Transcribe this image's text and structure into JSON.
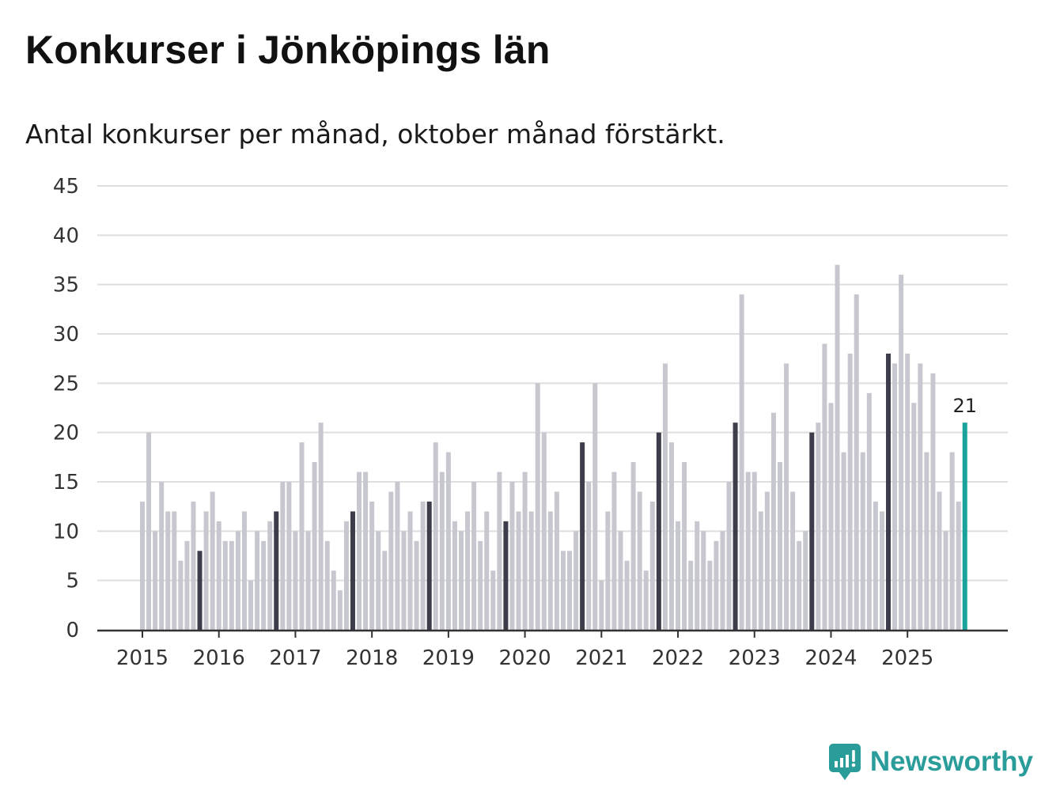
{
  "title": "Konkurser i Jönköpings län",
  "subtitle": "Antal konkurser per månad, oktober månad förstärkt.",
  "brand": {
    "name": "Newsworthy",
    "icon": "newsworthy-logo-icon"
  },
  "colors": {
    "normal": "#c7c7cf",
    "october": "#3c3c4b",
    "latest": "#1aa19c",
    "grid": "#dedede",
    "axis": "#333333"
  },
  "chart_data": {
    "type": "bar",
    "title": "Konkurser i Jönköpings län",
    "subtitle": "Antal konkurser per månad, oktober månad förstärkt.",
    "xlabel": "",
    "ylabel": "",
    "ylim": [
      0,
      45
    ],
    "yticks": [
      0,
      5,
      10,
      15,
      20,
      25,
      30,
      35,
      40,
      45
    ],
    "xticks": [
      "2015",
      "2016",
      "2017",
      "2018",
      "2019",
      "2020",
      "2021",
      "2022",
      "2023",
      "2024",
      "2025"
    ],
    "start": "2015-01",
    "end": "2025-10",
    "highlight": "oktober",
    "latest_label": "21",
    "values": [
      13,
      20,
      10,
      15,
      12,
      12,
      7,
      9,
      13,
      8,
      12,
      14,
      11,
      9,
      9,
      10,
      12,
      5,
      10,
      9,
      11,
      12,
      15,
      15,
      10,
      19,
      10,
      17,
      21,
      9,
      6,
      4,
      11,
      12,
      16,
      16,
      13,
      10,
      8,
      14,
      15,
      10,
      12,
      9,
      13,
      13,
      19,
      16,
      18,
      11,
      10,
      12,
      15,
      9,
      12,
      6,
      16,
      11,
      15,
      12,
      16,
      12,
      25,
      20,
      12,
      14,
      8,
      8,
      10,
      19,
      15,
      25,
      5,
      12,
      16,
      10,
      7,
      17,
      14,
      6,
      13,
      20,
      27,
      19,
      11,
      17,
      7,
      11,
      10,
      7,
      9,
      10,
      15,
      21,
      34,
      16,
      16,
      12,
      14,
      22,
      17,
      27,
      14,
      9,
      10,
      20,
      21,
      29,
      23,
      37,
      18,
      28,
      34,
      18,
      24,
      13,
      12,
      28,
      27,
      36,
      28,
      23,
      27,
      18,
      26,
      14,
      10,
      18,
      13,
      21
    ]
  }
}
